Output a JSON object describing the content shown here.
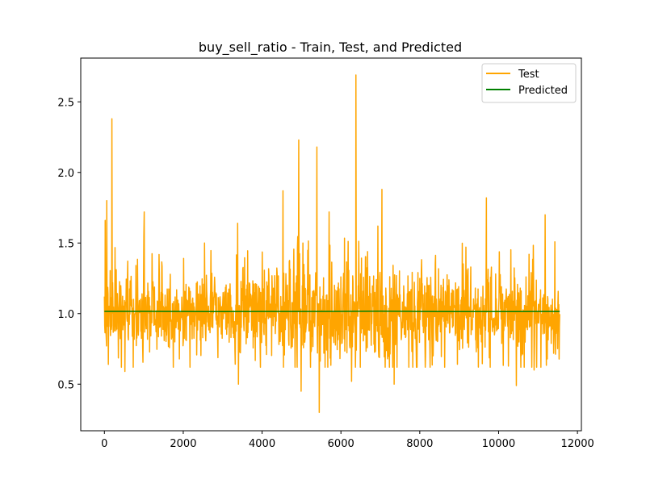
{
  "chart_data": {
    "type": "line",
    "title": "buy_sell_ratio - Train, Test, and Predicted",
    "xlabel": "",
    "ylabel": "",
    "xlim": [
      -600,
      12100
    ],
    "ylim": [
      0.17,
      2.81
    ],
    "x_ticks": [
      0,
      2000,
      4000,
      6000,
      8000,
      10000,
      12000
    ],
    "x_tick_labels": [
      "0",
      "2000",
      "4000",
      "6000",
      "8000",
      "10000",
      "12000"
    ],
    "y_ticks": [
      0.5,
      1.0,
      1.5,
      2.0,
      2.5
    ],
    "y_tick_labels": [
      "0.5",
      "1.0",
      "1.5",
      "2.0",
      "2.5"
    ],
    "grid": false,
    "legend_position": "top-right",
    "series": [
      {
        "name": "Test",
        "color": "#ffa500",
        "x_range": [
          0,
          11550
        ],
        "n_points": 11550,
        "baseline": 1.0,
        "notable_peaks": [
          [
            20,
            1.66
          ],
          [
            60,
            1.8
          ],
          [
            190,
            2.38
          ],
          [
            1010,
            1.72
          ],
          [
            2540,
            1.5
          ],
          [
            3380,
            1.64
          ],
          [
            4530,
            1.87
          ],
          [
            4930,
            2.23
          ],
          [
            5390,
            2.18
          ],
          [
            5700,
            1.72
          ],
          [
            6380,
            2.69
          ],
          [
            7040,
            1.88
          ],
          [
            9690,
            1.82
          ],
          [
            11180,
            1.7
          ]
        ],
        "notable_troughs": [
          [
            100,
            0.64
          ],
          [
            520,
            0.59
          ],
          [
            3400,
            0.5
          ],
          [
            4990,
            0.45
          ],
          [
            5450,
            0.3
          ],
          [
            6270,
            0.52
          ],
          [
            7350,
            0.5
          ],
          [
            10450,
            0.49
          ],
          [
            10900,
            0.6
          ]
        ]
      },
      {
        "name": "Predicted",
        "color": "#008000",
        "x": [
          0,
          1000,
          2000,
          3000,
          4000,
          5000,
          6000,
          7000,
          8000,
          9000,
          10000,
          11000,
          11550
        ],
        "y": [
          1.016,
          1.016,
          1.015,
          1.014,
          1.015,
          1.015,
          1.016,
          1.017,
          1.015,
          1.014,
          1.014,
          1.015,
          1.015
        ]
      }
    ]
  }
}
